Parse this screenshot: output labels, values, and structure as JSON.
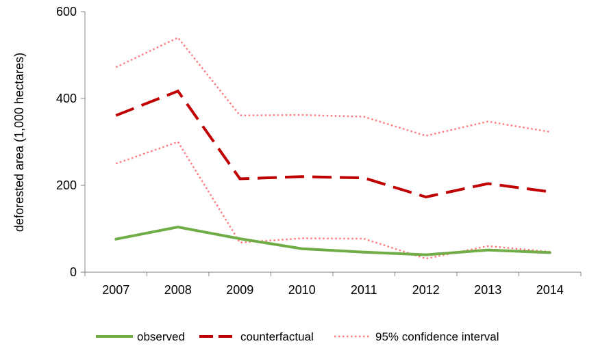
{
  "chart_data": {
    "type": "line",
    "title": "",
    "xlabel": "",
    "ylabel": "deforested area (1,000 hectares)",
    "categories": [
      "2007",
      "2008",
      "2009",
      "2010",
      "2011",
      "2012",
      "2013",
      "2014"
    ],
    "ylim": [
      0,
      600
    ],
    "yticks": [
      0,
      200,
      400,
      600
    ],
    "grid": false,
    "legend_position": "bottom",
    "series": [
      {
        "name": "observed",
        "values": [
          76,
          104,
          77,
          54,
          46,
          40,
          51,
          45
        ],
        "color": "#70ad47",
        "style": "solid"
      },
      {
        "name": "counterfactual",
        "values": [
          361,
          417,
          215,
          220,
          217,
          173,
          204,
          185
        ],
        "color": "#c00000",
        "style": "dashed"
      },
      {
        "name": "95% confidence interval",
        "values": [
          472,
          540,
          361,
          362,
          358,
          314,
          347,
          323
        ],
        "color": "#ff7c80",
        "style": "dotted"
      },
      {
        "name": "",
        "values": [
          250,
          300,
          68,
          78,
          77,
          31,
          60,
          47
        ],
        "color": "#ff7c80",
        "style": "dotted",
        "show_in_legend": false
      }
    ]
  }
}
